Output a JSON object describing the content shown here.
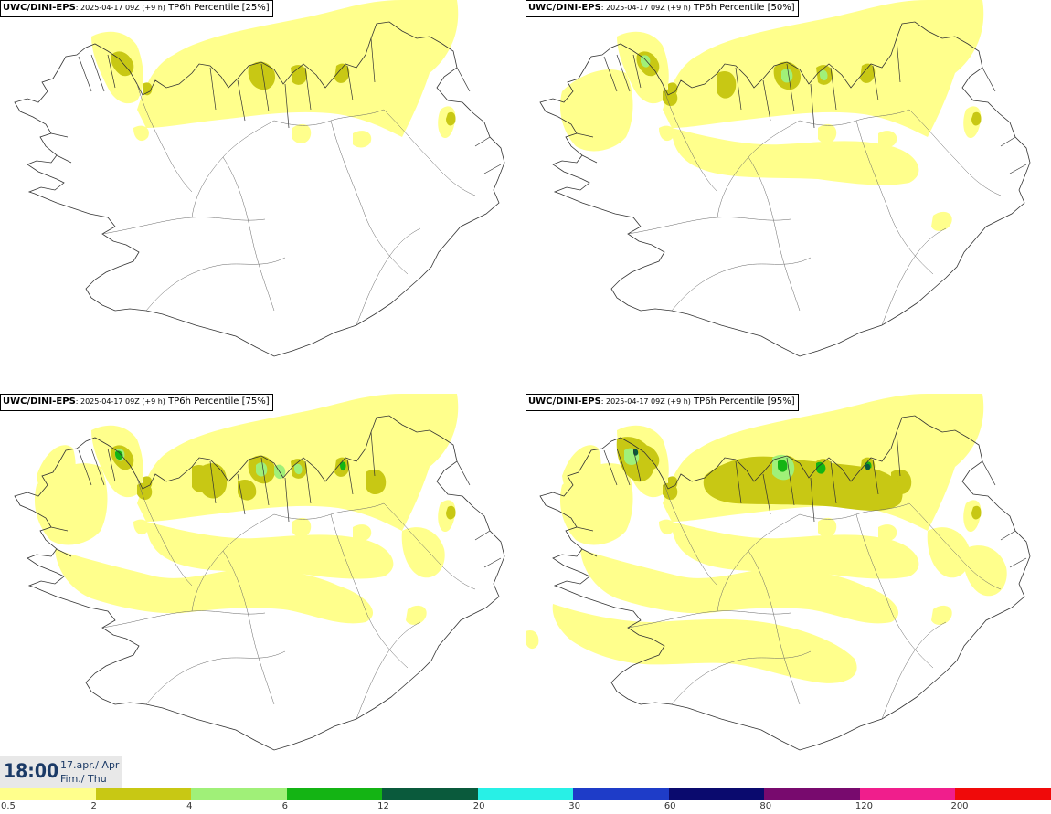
{
  "panels": [
    {
      "source": "UWC/DINI-EPS",
      "date": ": 2025-04-17 09Z (+9 h)",
      "label": " TP6h Percentile [25%]",
      "level": 0
    },
    {
      "source": "UWC/DINI-EPS",
      "date": ": 2025-04-17 09Z (+9 h)",
      "label": " TP6h Percentile [50%]",
      "level": 1
    },
    {
      "source": "UWC/DINI-EPS",
      "date": ": 2025-04-17 09Z (+9 h)",
      "label": " TP6h Percentile [75%]",
      "level": 2
    },
    {
      "source": "UWC/DINI-EPS",
      "date": ": 2025-04-17 09Z (+9 h)",
      "label": " TP6h Percentile [95%]",
      "level": 3
    }
  ],
  "time": {
    "value": "18:00",
    "date_line1": "17.apr./ Apr",
    "date_line2": "Fim./ Thu"
  },
  "scale": {
    "labels": [
      "0.5",
      "2",
      "4",
      "6",
      "12",
      "20",
      "30",
      "60",
      "80",
      "120",
      "200"
    ],
    "colors": [
      "#ffff8c",
      "#c8c814",
      "#a0f078",
      "#14b414",
      "#0a5a3c",
      "#28f0e6",
      "#1e3cc8",
      "#0a0a6e",
      "#780a6e",
      "#f01e8c",
      "#f00a0a"
    ]
  },
  "colors": {
    "coast": "#333333",
    "light": "#ffff8c",
    "mid": "#c8c814",
    "green_light": "#a0f078",
    "green": "#14b414",
    "dark_green": "#0a5a3c"
  }
}
